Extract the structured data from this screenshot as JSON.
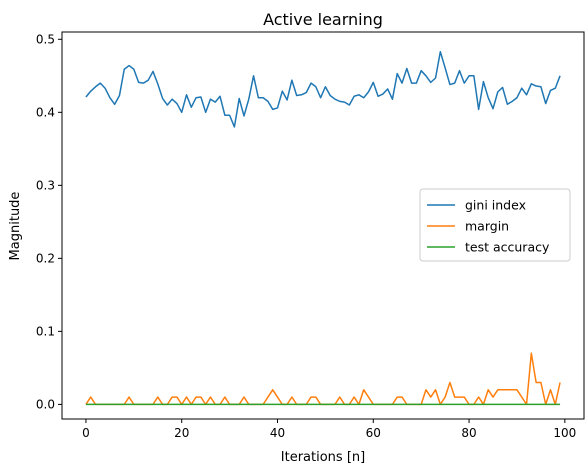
{
  "chart_data": {
    "type": "line",
    "title": "Active learning",
    "xlabel": "Iterations [n]",
    "ylabel": "Magnitude",
    "xlim": [
      -5,
      104
    ],
    "ylim": [
      -0.02,
      0.51
    ],
    "xticks": [
      0,
      20,
      40,
      60,
      80,
      100
    ],
    "yticks": [
      0.0,
      0.1,
      0.2,
      0.3,
      0.4,
      0.5
    ],
    "xtick_labels": [
      "0",
      "20",
      "40",
      "60",
      "80",
      "100"
    ],
    "ytick_labels": [
      "0.0",
      "0.1",
      "0.2",
      "0.3",
      "0.4",
      "0.5"
    ],
    "grid": false,
    "legend_position": "center-right",
    "x": [
      0,
      1,
      2,
      3,
      4,
      5,
      6,
      7,
      8,
      9,
      10,
      11,
      12,
      13,
      14,
      15,
      16,
      17,
      18,
      19,
      20,
      21,
      22,
      23,
      24,
      25,
      26,
      27,
      28,
      29,
      30,
      31,
      32,
      33,
      34,
      35,
      36,
      37,
      38,
      39,
      40,
      41,
      42,
      43,
      44,
      45,
      46,
      47,
      48,
      49,
      50,
      51,
      52,
      53,
      54,
      55,
      56,
      57,
      58,
      59,
      60,
      61,
      62,
      63,
      64,
      65,
      66,
      67,
      68,
      69,
      70,
      71,
      72,
      73,
      74,
      75,
      76,
      77,
      78,
      79,
      80,
      81,
      82,
      83,
      84,
      85,
      86,
      87,
      88,
      89,
      90,
      91,
      92,
      93,
      94,
      95,
      96,
      97,
      98,
      99
    ],
    "series": [
      {
        "name": "gini index",
        "color": "#1f77b4",
        "values": [
          0.421,
          0.429,
          0.435,
          0.44,
          0.433,
          0.42,
          0.411,
          0.423,
          0.459,
          0.464,
          0.459,
          0.441,
          0.44,
          0.444,
          0.456,
          0.439,
          0.419,
          0.41,
          0.418,
          0.412,
          0.4,
          0.424,
          0.407,
          0.42,
          0.421,
          0.4,
          0.418,
          0.414,
          0.422,
          0.396,
          0.396,
          0.38,
          0.419,
          0.395,
          0.418,
          0.45,
          0.42,
          0.42,
          0.415,
          0.404,
          0.406,
          0.429,
          0.417,
          0.444,
          0.423,
          0.424,
          0.427,
          0.44,
          0.435,
          0.42,
          0.435,
          0.423,
          0.418,
          0.415,
          0.414,
          0.41,
          0.422,
          0.424,
          0.42,
          0.428,
          0.441,
          0.422,
          0.425,
          0.432,
          0.418,
          0.453,
          0.44,
          0.46,
          0.44,
          0.44,
          0.457,
          0.45,
          0.441,
          0.447,
          0.483,
          0.461,
          0.438,
          0.44,
          0.457,
          0.44,
          0.45,
          0.45,
          0.404,
          0.442,
          0.42,
          0.405,
          0.428,
          0.434,
          0.411,
          0.415,
          0.42,
          0.433,
          0.424,
          0.439,
          0.436,
          0.435,
          0.412,
          0.43,
          0.433,
          0.45
        ]
      },
      {
        "name": "margin",
        "color": "#ff7f0e",
        "values": [
          0,
          0.01,
          0,
          0,
          0,
          0,
          0,
          0,
          0,
          0.01,
          0,
          0,
          0,
          0,
          0,
          0.01,
          0,
          0,
          0.01,
          0.01,
          0,
          0.01,
          0,
          0.01,
          0.01,
          0,
          0.01,
          0,
          0,
          0.01,
          0,
          0,
          0,
          0.01,
          0,
          0,
          0,
          0,
          0.01,
          0.02,
          0.01,
          0,
          0,
          0.01,
          0,
          0,
          0,
          0.01,
          0.01,
          0,
          0,
          0,
          0,
          0.01,
          0,
          0,
          0.01,
          0,
          0.02,
          0.01,
          0,
          0,
          0,
          0,
          0,
          0.01,
          0.01,
          0,
          0,
          0,
          0,
          0.02,
          0.01,
          0.02,
          0,
          0.01,
          0.03,
          0.01,
          0.01,
          0.01,
          0,
          0,
          0.01,
          0,
          0.02,
          0.01,
          0.02,
          0.02,
          0.02,
          0.02,
          0.02,
          0.01,
          0,
          0.07,
          0.03,
          0.03,
          0,
          0.02,
          0,
          0.03
        ]
      },
      {
        "name": "test accuracy",
        "color": "#2ca02c",
        "values": [
          0,
          0,
          0,
          0,
          0,
          0,
          0,
          0,
          0,
          0,
          0,
          0,
          0,
          0,
          0,
          0,
          0,
          0,
          0,
          0,
          0,
          0,
          0,
          0,
          0,
          0,
          0,
          0,
          0,
          0,
          0,
          0,
          0,
          0,
          0,
          0,
          0,
          0,
          0,
          0,
          0,
          0,
          0,
          0,
          0,
          0,
          0,
          0,
          0,
          0,
          0,
          0,
          0,
          0,
          0,
          0,
          0,
          0,
          0,
          0,
          0,
          0,
          0,
          0,
          0,
          0,
          0,
          0,
          0,
          0,
          0,
          0,
          0,
          0,
          0,
          0,
          0,
          0,
          0,
          0,
          0,
          0,
          0,
          0,
          0,
          0,
          0,
          0,
          0,
          0,
          0,
          0,
          0,
          0,
          0,
          0,
          0,
          0,
          0,
          0
        ]
      }
    ]
  }
}
